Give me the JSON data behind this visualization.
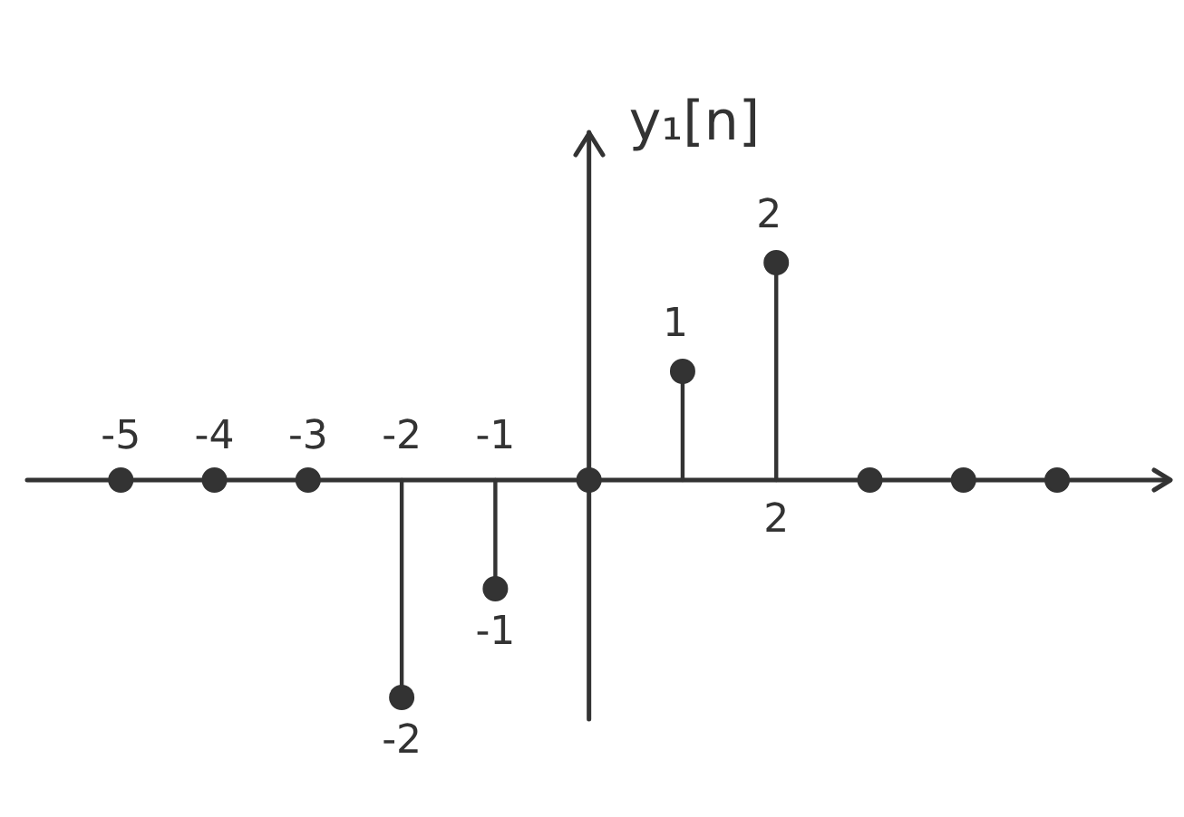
{
  "chart_data": {
    "type": "lollipop",
    "ylabel": "y₁[n]",
    "x": [
      -5,
      -4,
      -3,
      -2,
      -1,
      0,
      1,
      2,
      3,
      4,
      5
    ],
    "values": [
      0,
      0,
      0,
      -2,
      -1,
      0,
      1,
      2,
      0,
      0,
      0
    ],
    "value_labels": [
      null,
      null,
      null,
      "-2",
      "-1",
      null,
      "1",
      "2",
      null,
      null,
      null
    ],
    "annotations": [
      "2"
    ],
    "color": "#333333",
    "marker": "circle",
    "tick_labels": "x",
    "xlim": [
      -6,
      6.2
    ],
    "ylim": [
      -2.2,
      3.2
    ],
    "xticks": [
      -5,
      -4,
      -3,
      -2,
      -1
    ]
  }
}
